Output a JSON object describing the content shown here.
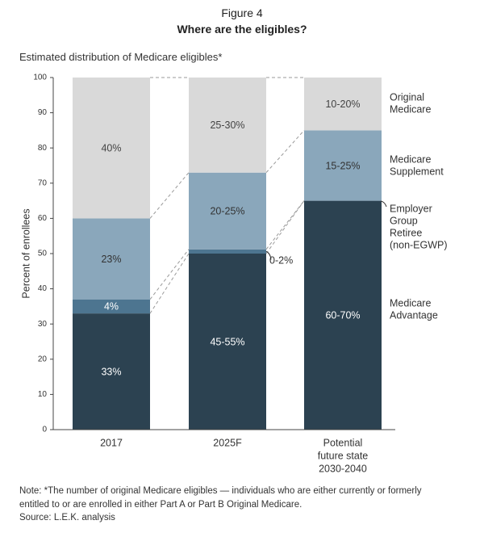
{
  "figure": {
    "number": "Figure 4",
    "title": "Where are the eligibles?",
    "subtitle": "Estimated distribution of Medicare eligibles*"
  },
  "chart_data": {
    "type": "bar",
    "stacked": true,
    "title": "Where are the eligibles?",
    "ylabel": "Percent of enrollees",
    "xlabel": "",
    "ylim": [
      0,
      100
    ],
    "yticks": [
      0,
      10,
      20,
      30,
      40,
      50,
      60,
      70,
      80,
      90,
      100
    ],
    "categories": [
      "2017",
      "2025F",
      "Potential future state 2030-2040"
    ],
    "category_label_lines": [
      [
        "2017"
      ],
      [
        "2025F"
      ],
      [
        "Potential",
        "future state",
        "2030-2040"
      ]
    ],
    "series": [
      {
        "name": "Medicare Advantage",
        "legend_lines": [
          "Medicare",
          "Advantage"
        ],
        "color": "#2c4251",
        "text_color": "#ffffff",
        "values": [
          33,
          50,
          65
        ],
        "labels": [
          "33%",
          "45-55%",
          "60-70%"
        ]
      },
      {
        "name": "Employer Group Retiree (non-EGWP)",
        "legend_lines": [
          "Employer",
          "Group",
          "Retiree",
          "(non-EGWP)"
        ],
        "color": "#4d7590",
        "text_color": "#ffffff",
        "values": [
          4,
          1.2,
          0
        ],
        "labels": [
          "4%",
          "",
          ""
        ],
        "outside_label": {
          "category_index": 1,
          "text": "0-2%"
        }
      },
      {
        "name": "Medicare Supplement",
        "legend_lines": [
          "Medicare",
          "Supplement"
        ],
        "color": "#8aa7bb",
        "text_color": "#333333",
        "values": [
          23,
          21.8,
          20
        ],
        "labels": [
          "23%",
          "20-25%",
          "15-25%"
        ]
      },
      {
        "name": "Original Medicare",
        "legend_lines": [
          "Original",
          "Medicare"
        ],
        "color": "#d9d9d9",
        "text_color": "#444444",
        "values": [
          40,
          27,
          15
        ],
        "labels": [
          "40%",
          "25-30%",
          "10-20%"
        ]
      }
    ],
    "grid": false,
    "connector_lines": "dashed",
    "legend": "right"
  },
  "notes": {
    "note_line1": "Note: *The number of original Medicare eligibles — individuals who are either currently or formerly",
    "note_line2": "entitled to or are enrolled in either Part A or Part B Original Medicare.",
    "source": "Source: L.E.K. analysis"
  }
}
